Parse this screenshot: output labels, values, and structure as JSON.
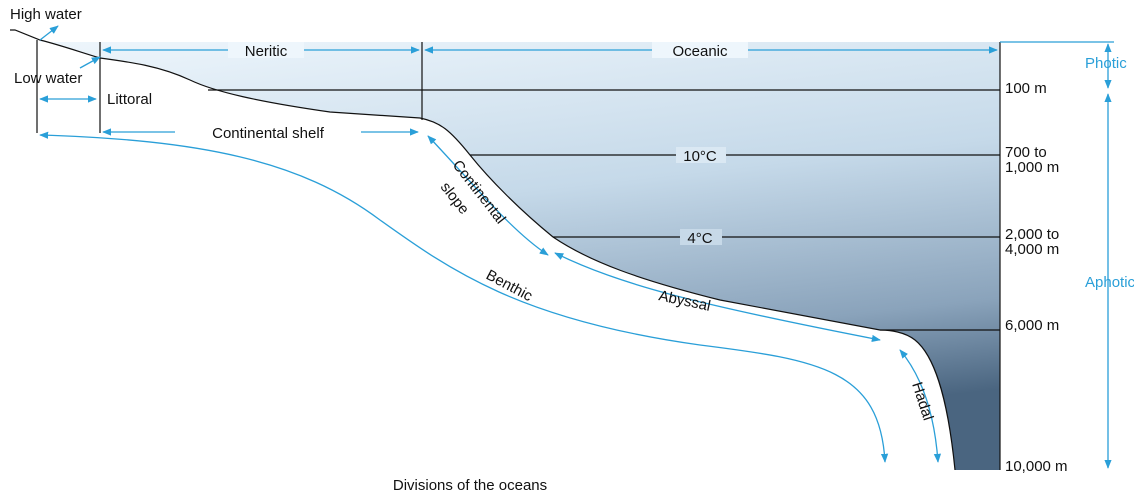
{
  "labels": {
    "high_water": "High water",
    "low_water": "Low water",
    "littoral": "Littoral",
    "neritic": "Neritic",
    "oceanic": "Oceanic",
    "continental_shelf": "Continental shelf",
    "continental_slope": [
      "Continental",
      "slope"
    ],
    "benthic": "Benthic",
    "abyssal": "Abyssal",
    "hadal": "Hadal"
  },
  "temperatures": [
    "10°C",
    "4°C"
  ],
  "depths": [
    [
      "100 m"
    ],
    [
      "700 to",
      "1,000 m"
    ],
    [
      "2,000 to",
      "4,000 m"
    ],
    [
      "6,000 m"
    ],
    [
      "10,000 m"
    ]
  ],
  "zones": [
    "Photic",
    "Aphotic"
  ],
  "caption": "Divisions of the oceans"
}
